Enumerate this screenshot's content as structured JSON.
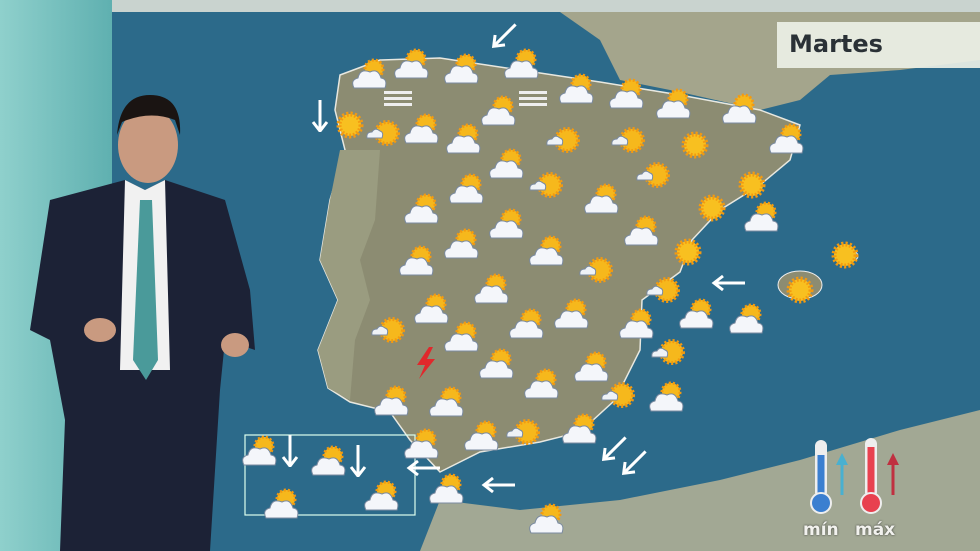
{
  "day_label": "Martes",
  "legend": {
    "min_label": "mín",
    "max_label": "máx",
    "min_color": "#3b7fd0",
    "max_color": "#e8414f"
  },
  "colors": {
    "sea": "#2c6a8a",
    "land": "#8c8c72",
    "studio": "#8fd0cc"
  },
  "map_icons": [
    "sun-behind-cloud",
    "sun-with-small-cloud",
    "sun",
    "wind-arrow",
    "lightning",
    "fog"
  ],
  "presenter": {
    "suit": "#1c2236",
    "tie": "#4a9a9a"
  }
}
